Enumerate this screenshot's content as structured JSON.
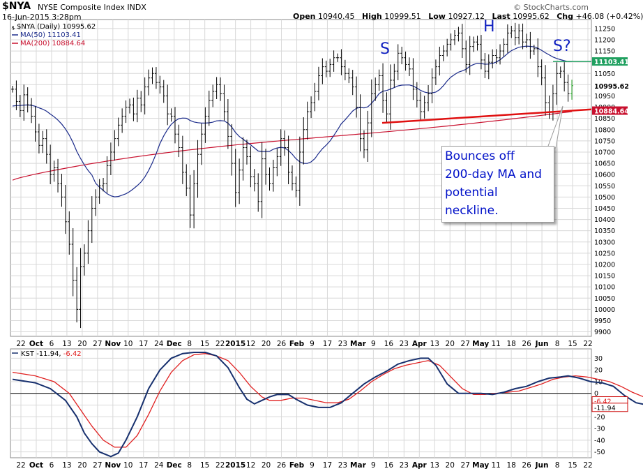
{
  "header": {
    "symbol": "$NYA",
    "name": "NYSE Composite Index  INDX",
    "date": "16-Jun-2015 3:28pm",
    "open_label": "Open",
    "open": "10940.45",
    "high_label": "High",
    "high": "10999.51",
    "low_label": "Low",
    "low": "10927.12",
    "last_label": "Last",
    "last": "10995.62",
    "chg_label": "Chg",
    "chg": "+46.08 (+0.42%)",
    "brand": "© StockCharts.com"
  },
  "colors": {
    "price": "#000000",
    "ma50": "#1a2a8a",
    "ma200": "#c8102e",
    "neckline": "#e01010",
    "kst": "#17306e",
    "kst_signal": "#e02020",
    "green_line": "#20a060",
    "text_blue": "#0010c8",
    "grid": "#d8d8d8"
  },
  "chart_data": [
    {
      "type": "ohlc",
      "title": "$NYA (Daily) 10995.62",
      "legend": [
        {
          "name": "$NYA (Daily) 10995.62",
          "color": "#000000"
        },
        {
          "name": "MA(50) 11103.41",
          "color": "#1a2a8a"
        },
        {
          "name": "MA(200) 10884.64",
          "color": "#c8102e"
        }
      ],
      "legend_placement": "top-left",
      "ylim": [
        9880,
        11290
      ],
      "y_ticks": [
        9900,
        9950,
        10000,
        10050,
        10100,
        10150,
        10200,
        10250,
        10300,
        10350,
        10400,
        10450,
        10500,
        10550,
        10600,
        10650,
        10700,
        10750,
        10800,
        10850,
        10900,
        10950,
        11000,
        11050,
        11100,
        11150,
        11200,
        11250
      ],
      "x_tick_labels": [
        "22",
        "Oct",
        "6",
        "13",
        "20",
        "27",
        "Nov",
        "10",
        "17",
        "24",
        "Dec",
        "8",
        "15",
        "22",
        "2015",
        "12",
        "20",
        "26",
        "Feb",
        "9",
        "17",
        "23",
        "Mar",
        "9",
        "16",
        "23",
        "Apr",
        "13",
        "20",
        "27",
        "May",
        "11",
        "18",
        "26",
        "Jun",
        "8",
        "15",
        "22"
      ],
      "grid": true,
      "last_value_labels": [
        "11103.41",
        "10995.62",
        "10884.64"
      ],
      "closes": [
        10980,
        10925,
        10885,
        10955,
        10910,
        10860,
        10790,
        10730,
        10760,
        10690,
        10600,
        10630,
        10560,
        10500,
        10390,
        10290,
        10130,
        10000,
        10190,
        10250,
        10350,
        10450,
        10500,
        10550,
        10560,
        10640,
        10700,
        10760,
        10820,
        10860,
        10900,
        10910,
        10870,
        10940,
        10910,
        10990,
        11030,
        11050,
        11010,
        10990,
        10950,
        10870,
        10860,
        10780,
        10720,
        10610,
        10540,
        10420,
        10560,
        10690,
        10780,
        10860,
        10930,
        10970,
        11000,
        10960,
        10880,
        10770,
        10650,
        10520,
        10620,
        10720,
        10680,
        10590,
        10560,
        10480,
        10670,
        10600,
        10560,
        10630,
        10680,
        10760,
        10720,
        10610,
        10560,
        10530,
        10700,
        10800,
        10880,
        10920,
        10970,
        11040,
        11080,
        11060,
        11090,
        11120,
        11120,
        11080,
        11050,
        11030,
        10990,
        10900,
        10760,
        10710,
        10830,
        10960,
        11000,
        11040,
        10930,
        10870,
        11020,
        11060,
        11140,
        11120,
        11090,
        11070,
        10980,
        10930,
        10880,
        10920,
        10960,
        11030,
        11080,
        11130,
        11150,
        11180,
        11200,
        11220,
        11230,
        11160,
        11090,
        11170,
        11190,
        11180,
        11110,
        11060,
        11100,
        11130,
        11120,
        11150,
        11180,
        11230,
        11240,
        11210,
        11240,
        11190,
        11200,
        11150,
        11160,
        11080,
        11030,
        10920,
        10880,
        10960,
        11050,
        11060,
        11010,
        10960,
        10995.62
      ],
      "neckline": [
        [
          10830,
          10890
        ]
      ],
      "horizontal_level": 11103.41,
      "pattern_labels": [
        "S",
        "H",
        "S?"
      ],
      "annotation": "Bounces off\n200-day MA and\npotential neckline."
    },
    {
      "type": "line",
      "title": "KST -11.94, -6.42",
      "series": [
        {
          "name": "KST",
          "color": "#17306e",
          "last": -11.94
        },
        {
          "name": "signal",
          "color": "#e02020",
          "last": -6.42
        }
      ],
      "ylim": [
        -55,
        38
      ],
      "y_ticks": [
        -50,
        -40,
        -30,
        -20,
        -10,
        0,
        10,
        20,
        30
      ],
      "zero_line": true,
      "last_value_labels": [
        "-6.42",
        "-11.94"
      ],
      "kst": [
        [
          0,
          12
        ],
        [
          6,
          9
        ],
        [
          10,
          4
        ],
        [
          14,
          -6
        ],
        [
          17,
          -20
        ],
        [
          19,
          -34
        ],
        [
          21,
          -43
        ],
        [
          23,
          -50
        ],
        [
          26,
          -54
        ],
        [
          28,
          -51
        ],
        [
          30,
          -40
        ],
        [
          33,
          -20
        ],
        [
          36,
          4
        ],
        [
          39,
          20
        ],
        [
          42,
          30
        ],
        [
          45,
          34
        ],
        [
          48,
          35
        ],
        [
          51,
          35
        ],
        [
          54,
          32
        ],
        [
          57,
          22
        ],
        [
          60,
          5
        ],
        [
          62,
          -5
        ],
        [
          64,
          -9
        ],
        [
          66,
          -6
        ],
        [
          68,
          -3
        ],
        [
          70,
          -1
        ],
        [
          73,
          -1
        ],
        [
          75,
          -5
        ],
        [
          78,
          -10
        ],
        [
          81,
          -12
        ],
        [
          84,
          -12
        ],
        [
          87,
          -8
        ],
        [
          90,
          0
        ],
        [
          93,
          8
        ],
        [
          96,
          14
        ],
        [
          99,
          19
        ],
        [
          102,
          25
        ],
        [
          105,
          28
        ],
        [
          108,
          30
        ],
        [
          110,
          30
        ],
        [
          112,
          24
        ],
        [
          115,
          8
        ],
        [
          118,
          0
        ],
        [
          121,
          0
        ],
        [
          124,
          0
        ],
        [
          127,
          -1
        ],
        [
          130,
          1
        ],
        [
          133,
          4
        ],
        [
          136,
          6
        ],
        [
          139,
          10
        ],
        [
          142,
          13
        ],
        [
          145,
          14
        ],
        [
          147,
          15
        ],
        [
          150,
          13
        ],
        [
          153,
          10
        ],
        [
          156,
          9
        ],
        [
          159,
          6
        ],
        [
          162,
          -2
        ],
        [
          165,
          -8
        ],
        [
          168,
          -10
        ],
        [
          170,
          -11.94
        ]
      ],
      "signal": [
        [
          0,
          18
        ],
        [
          6,
          15
        ],
        [
          11,
          10
        ],
        [
          15,
          0
        ],
        [
          18,
          -14
        ],
        [
          21,
          -28
        ],
        [
          24,
          -40
        ],
        [
          27,
          -46
        ],
        [
          30,
          -46
        ],
        [
          33,
          -36
        ],
        [
          36,
          -18
        ],
        [
          39,
          2
        ],
        [
          42,
          18
        ],
        [
          45,
          28
        ],
        [
          48,
          33
        ],
        [
          51,
          34
        ],
        [
          54,
          32
        ],
        [
          57,
          28
        ],
        [
          60,
          18
        ],
        [
          63,
          6
        ],
        [
          66,
          -3
        ],
        [
          68,
          -6
        ],
        [
          71,
          -6
        ],
        [
          74,
          -4
        ],
        [
          77,
          -4
        ],
        [
          80,
          -6
        ],
        [
          83,
          -8
        ],
        [
          86,
          -8
        ],
        [
          89,
          -5
        ],
        [
          92,
          2
        ],
        [
          95,
          10
        ],
        [
          98,
          16
        ],
        [
          101,
          21
        ],
        [
          104,
          24
        ],
        [
          107,
          26
        ],
        [
          110,
          28
        ],
        [
          113,
          24
        ],
        [
          116,
          14
        ],
        [
          119,
          4
        ],
        [
          122,
          -1
        ],
        [
          125,
          -1
        ],
        [
          128,
          0
        ],
        [
          131,
          1
        ],
        [
          134,
          2
        ],
        [
          137,
          5
        ],
        [
          140,
          8
        ],
        [
          143,
          12
        ],
        [
          146,
          14
        ],
        [
          149,
          15
        ],
        [
          152,
          14
        ],
        [
          155,
          12
        ],
        [
          158,
          10
        ],
        [
          161,
          6
        ],
        [
          164,
          1
        ],
        [
          167,
          -3
        ],
        [
          170,
          -6.42
        ]
      ]
    }
  ]
}
